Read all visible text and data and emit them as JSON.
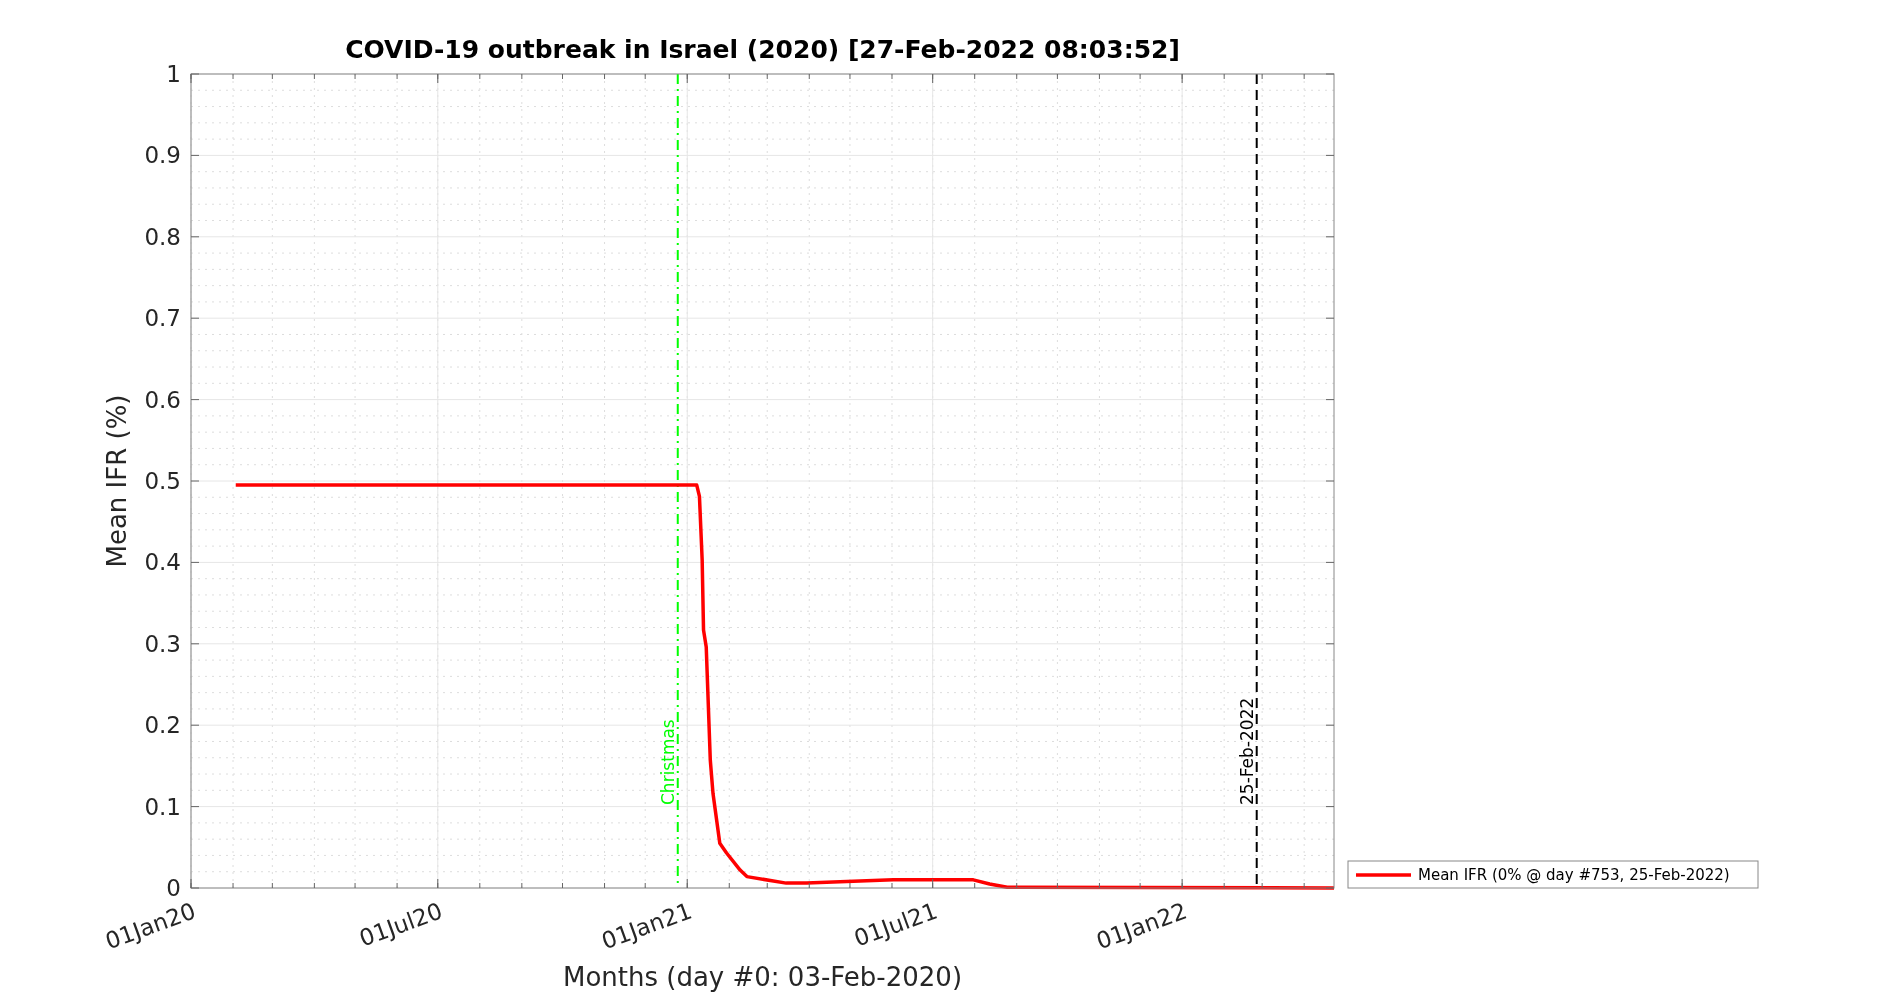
{
  "chart_data": {
    "type": "line",
    "title": "COVID-19 outbreak in Israel (2020) [27-Feb-2022 08:03:52]",
    "xlabel": "Months (day #0: 03-Feb-2020)",
    "ylabel": "Mean IFR (%)",
    "xlim": [
      "2020-01-01",
      "2022-04-23"
    ],
    "xticks": [
      {
        "value": "2020-01-01",
        "label": "01Jan20"
      },
      {
        "value": "2020-07-01",
        "label": "01Jul20"
      },
      {
        "value": "2021-01-01",
        "label": "01Jan21"
      },
      {
        "value": "2021-07-01",
        "label": "01Jul21"
      },
      {
        "value": "2022-01-01",
        "label": "01Jan22"
      }
    ],
    "ylim": [
      0,
      1
    ],
    "yticks": [
      0,
      0.1,
      0.2,
      0.3,
      0.4,
      0.5,
      0.6,
      0.7,
      0.8,
      0.9,
      1
    ],
    "grid": true,
    "legend": "bottom right",
    "series": [
      {
        "name": "Mean IFR (0% @ day #753, 25-Feb-2022)",
        "color": "#ff0000",
        "x": [
          "2020-02-03",
          "2021-01-08",
          "2021-01-10",
          "2021-01-12",
          "2021-01-13",
          "2021-01-15",
          "2021-01-18",
          "2021-01-20",
          "2021-01-25",
          "2021-01-30",
          "2021-02-09",
          "2021-02-14",
          "2021-03-15",
          "2021-03-30",
          "2021-06-02",
          "2021-07-31",
          "2021-08-12",
          "2021-08-25",
          "2022-04-23"
        ],
        "values": [
          0.495,
          0.495,
          0.481,
          0.403,
          0.317,
          0.296,
          0.157,
          0.116,
          0.055,
          0.043,
          0.022,
          0.014,
          0.006,
          0.006,
          0.01,
          0.01,
          0.005,
          0.001,
          0
        ]
      }
    ],
    "ref_lines": [
      {
        "axis": "x",
        "value": "2020-12-25",
        "label": "Christmas",
        "color": "#00ff00",
        "line_style": "dashdot"
      },
      {
        "axis": "x",
        "value": "2022-02-25",
        "label": "25-Feb-2022",
        "color": "#000000",
        "line_style": "dashed"
      }
    ]
  }
}
